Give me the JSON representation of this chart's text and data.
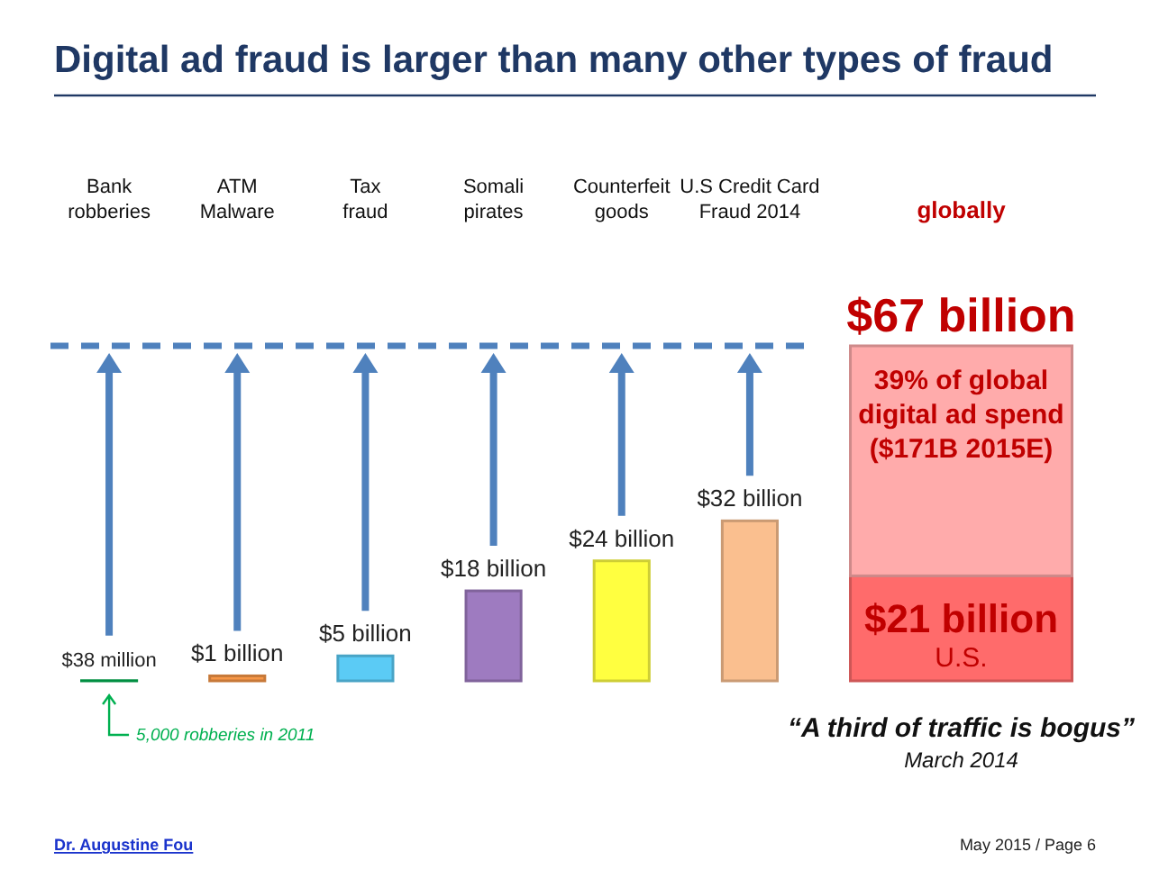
{
  "chart_data": {
    "type": "bar",
    "title": "Digital ad fraud is larger than many other types of fraud",
    "categories": [
      "Bank robberies",
      "ATM Malware",
      "Tax fraud",
      "Somali pirates",
      "Counterfeit goods",
      "U.S Credit Card Fraud 2014",
      "globally"
    ],
    "stacked": true,
    "tick_labels": "x",
    "series": [
      {
        "values": [
          0.038,
          1,
          5,
          18,
          24,
          32,
          null
        ],
        "colors": [
          "#00b050",
          "#f79646",
          "#5bcbf5",
          "#9e7bc0",
          "#ffff40",
          "#fabf8f",
          null
        ],
        "value_labels": [
          null,
          "$1 billion",
          "$5 billion",
          "$18 billion",
          "$24 billion",
          "$32 billion",
          null
        ]
      },
      {
        "name": "U.S.",
        "color": "#ff6b6b",
        "values": [
          null,
          null,
          null,
          null,
          null,
          null,
          21
        ],
        "value_labels": [
          null,
          null,
          null,
          null,
          null,
          null,
          "$21 billion"
        ]
      },
      {
        "color": "#ffabab",
        "values": [
          null,
          null,
          null,
          null,
          null,
          null,
          46
        ]
      }
    ],
    "totals": [
      null,
      null,
      null,
      null,
      null,
      null,
      "$67 billion"
    ],
    "ref_lines": [
      {
        "axis": "y",
        "value": 67,
        "color": "#4f81bd",
        "line_style": "dashed"
      }
    ],
    "annotations": [
      {
        "text": "39% of global digital ad spend ($171B 2015E)",
        "x": "globally",
        "y": 67
      },
      {
        "text": "$38 million",
        "x": "Bank robberies",
        "y": 0.038
      },
      "5,000 robberies in 2011",
      "“A third of traffic is bogus”",
      "March 2014",
      "Dr. Augustine Fou",
      "May 2015 / Page 6"
    ]
  }
}
